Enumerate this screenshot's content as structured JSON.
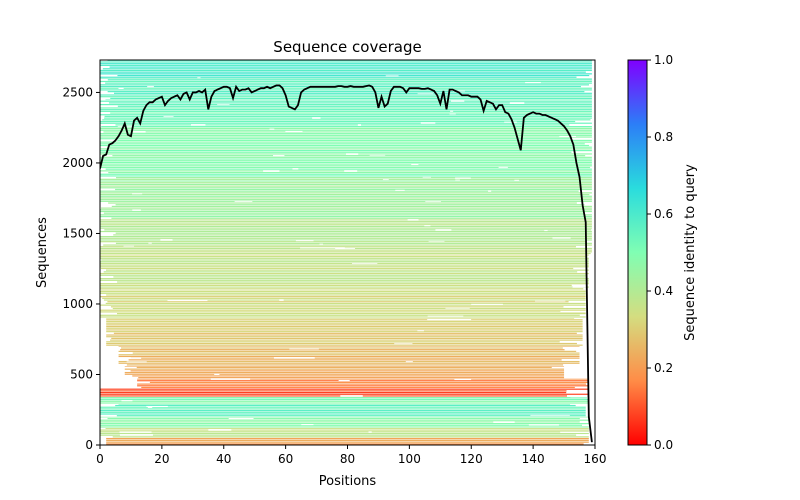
{
  "chart_data": {
    "type": "heatmap",
    "title": "Sequence coverage",
    "xlabel": "Positions",
    "ylabel": "Sequences",
    "xlim": [
      0,
      160
    ],
    "ylim": [
      0,
      2730
    ],
    "xticks": [
      0,
      20,
      40,
      60,
      80,
      100,
      120,
      140,
      160
    ],
    "yticks": [
      0,
      500,
      1000,
      1500,
      2000,
      2500
    ],
    "grid": false,
    "legend": "none",
    "colorbar": {
      "label": "Sequence identity to query",
      "min": 0.0,
      "max": 1.0,
      "ticks": [
        0.0,
        0.2,
        0.4,
        0.6,
        0.8,
        1.0
      ],
      "colormap": "rainbow_r",
      "stops": [
        "#ff0000",
        "#ff8c47",
        "#d4dd80",
        "#80feb3",
        "#2adcdd",
        "#2c7ef7",
        "#8000ff"
      ]
    },
    "identity_bands": [
      {
        "y0": 0,
        "y1": 50,
        "identity": 0.22,
        "x0": 2,
        "x1": 158
      },
      {
        "y0": 50,
        "y1": 120,
        "identity": 0.36,
        "x0": 0,
        "x1": 158
      },
      {
        "y0": 120,
        "y1": 200,
        "identity": 0.48,
        "x0": 0,
        "x1": 158
      },
      {
        "y0": 200,
        "y1": 290,
        "identity": 0.55,
        "x0": 0,
        "x1": 157
      },
      {
        "y0": 290,
        "y1": 340,
        "identity": 0.5,
        "x0": 0,
        "x1": 158
      },
      {
        "y0": 340,
        "y1": 400,
        "identity": 0.1,
        "x0": 0,
        "x1": 158
      },
      {
        "y0": 400,
        "y1": 470,
        "identity": 0.16,
        "x0": 12,
        "x1": 158
      },
      {
        "y0": 470,
        "y1": 560,
        "identity": 0.22,
        "x0": 8,
        "x1": 150
      },
      {
        "y0": 560,
        "y1": 700,
        "identity": 0.26,
        "x0": 6,
        "x1": 155
      },
      {
        "y0": 700,
        "y1": 900,
        "identity": 0.3,
        "x0": 2,
        "x1": 156
      },
      {
        "y0": 900,
        "y1": 1100,
        "identity": 0.33,
        "x0": 0,
        "x1": 157
      },
      {
        "y0": 1100,
        "y1": 1350,
        "identity": 0.36,
        "x0": 0,
        "x1": 158
      },
      {
        "y0": 1350,
        "y1": 1600,
        "identity": 0.39,
        "x0": 0,
        "x1": 159
      },
      {
        "y0": 1600,
        "y1": 1900,
        "identity": 0.44,
        "x0": 0,
        "x1": 159
      },
      {
        "y0": 1900,
        "y1": 2250,
        "identity": 0.49,
        "x0": 0,
        "x1": 159
      },
      {
        "y0": 2250,
        "y1": 2450,
        "identity": 0.53,
        "x0": 0,
        "x1": 159
      },
      {
        "y0": 2450,
        "y1": 2600,
        "identity": 0.56,
        "x0": 0,
        "x1": 159
      },
      {
        "y0": 2600,
        "y1": 2730,
        "identity": 0.6,
        "x0": 0,
        "x1": 159
      }
    ],
    "coverage": {
      "x": [
        0,
        1,
        2,
        3,
        4,
        5,
        6,
        7,
        8,
        9,
        10,
        11,
        12,
        13,
        14,
        15,
        16,
        17,
        18,
        19,
        20,
        21,
        22,
        23,
        24,
        25,
        26,
        27,
        28,
        29,
        30,
        31,
        32,
        33,
        34,
        35,
        36,
        37,
        38,
        39,
        40,
        41,
        42,
        43,
        44,
        45,
        46,
        47,
        48,
        49,
        50,
        51,
        52,
        53,
        54,
        55,
        56,
        57,
        58,
        59,
        60,
        61,
        62,
        63,
        64,
        65,
        66,
        67,
        68,
        69,
        70,
        71,
        72,
        73,
        74,
        75,
        76,
        77,
        78,
        79,
        80,
        81,
        82,
        83,
        84,
        85,
        86,
        87,
        88,
        89,
        90,
        91,
        92,
        93,
        94,
        95,
        96,
        97,
        98,
        99,
        100,
        101,
        102,
        103,
        104,
        105,
        106,
        107,
        108,
        109,
        110,
        111,
        112,
        113,
        114,
        115,
        116,
        117,
        118,
        119,
        120,
        121,
        122,
        123,
        124,
        125,
        126,
        127,
        128,
        129,
        130,
        131,
        132,
        133,
        134,
        135,
        136,
        137,
        138,
        139,
        140,
        141,
        142,
        143,
        144,
        145,
        146,
        147,
        148,
        149,
        150,
        151,
        152,
        153,
        154,
        155,
        156,
        157,
        158,
        159
      ],
      "y": [
        1960,
        2050,
        2060,
        2130,
        2140,
        2160,
        2190,
        2230,
        2280,
        2200,
        2190,
        2300,
        2320,
        2280,
        2370,
        2410,
        2430,
        2430,
        2450,
        2460,
        2470,
        2410,
        2440,
        2460,
        2470,
        2480,
        2450,
        2490,
        2500,
        2450,
        2500,
        2500,
        2510,
        2500,
        2520,
        2380,
        2470,
        2510,
        2520,
        2530,
        2540,
        2540,
        2530,
        2460,
        2540,
        2510,
        2520,
        2520,
        2530,
        2500,
        2510,
        2520,
        2530,
        2530,
        2540,
        2530,
        2540,
        2550,
        2550,
        2530,
        2480,
        2400,
        2390,
        2380,
        2410,
        2500,
        2520,
        2530,
        2540,
        2540,
        2540,
        2540,
        2540,
        2540,
        2540,
        2540,
        2540,
        2545,
        2545,
        2540,
        2540,
        2545,
        2540,
        2540,
        2540,
        2540,
        2545,
        2550,
        2540,
        2500,
        2390,
        2470,
        2400,
        2420,
        2510,
        2540,
        2540,
        2540,
        2530,
        2500,
        2530,
        2530,
        2530,
        2530,
        2525,
        2525,
        2530,
        2520,
        2510,
        2480,
        2420,
        2510,
        2380,
        2520,
        2520,
        2510,
        2500,
        2480,
        2480,
        2480,
        2470,
        2470,
        2470,
        2450,
        2370,
        2440,
        2430,
        2420,
        2380,
        2410,
        2410,
        2360,
        2350,
        2310,
        2250,
        2170,
        2090,
        2320,
        2340,
        2350,
        2360,
        2350,
        2350,
        2340,
        2340,
        2330,
        2320,
        2310,
        2300,
        2280,
        2260,
        2230,
        2190,
        2130,
        2000,
        1900,
        1700,
        1580,
        200,
        20
      ]
    }
  }
}
